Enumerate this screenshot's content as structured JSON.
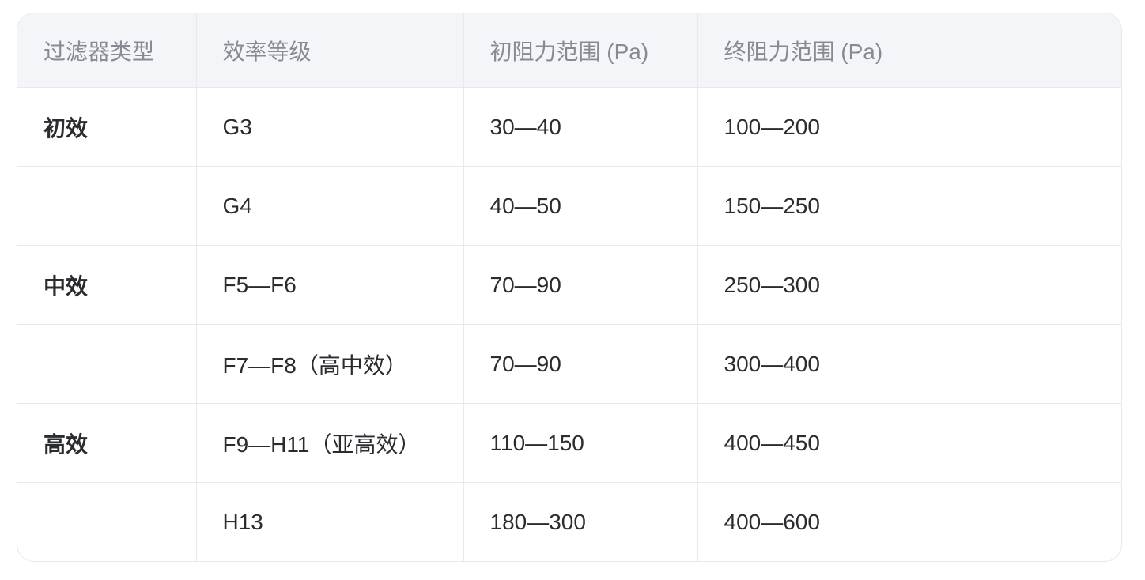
{
  "table": {
    "headers": [
      "过滤器类型",
      "效率等级",
      "初阻力范围 (Pa)",
      "终阻力范围 (Pa)"
    ],
    "rows": [
      [
        "初效",
        "G3",
        "30—40",
        "100—200"
      ],
      [
        "",
        "G4",
        "40—50",
        "150—250"
      ],
      [
        "中效",
        "F5—F6",
        "70—90",
        "250—300"
      ],
      [
        "",
        "F7—F8（高中效）",
        "70—90",
        "300—400"
      ],
      [
        "高效",
        "F9—H11（亚高效）",
        "110—150",
        "400—450"
      ],
      [
        "",
        "H13",
        "180—300",
        "400—600"
      ]
    ]
  }
}
